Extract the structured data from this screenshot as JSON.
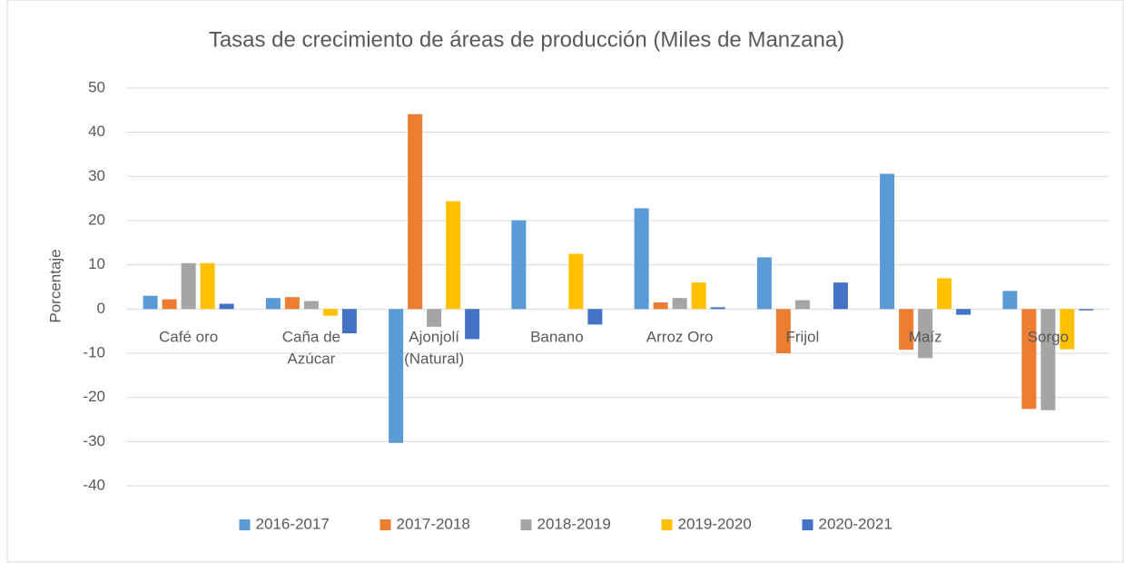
{
  "chart_data": {
    "type": "bar",
    "title": "Tasas de crecimiento de áreas de producción (Miles de Manzana)",
    "y_label": "Porcentaje",
    "categories": [
      "Café oro",
      "Caña de Azúcar",
      "Ajonjolí (Natural)",
      "Banano",
      "Arroz Oro",
      "Frijol",
      "Maíz",
      "Sorgo"
    ],
    "series": [
      {
        "name": "2016-2017",
        "color": "#5b9bd5",
        "values": [
          3.0,
          2.5,
          -30.3,
          20.1,
          22.8,
          11.7,
          30.6,
          4.1
        ]
      },
      {
        "name": "2017-2018",
        "color": "#ed7d31",
        "values": [
          2.2,
          2.7,
          44.1,
          0,
          1.5,
          -10.0,
          -9.2,
          -22.6
        ]
      },
      {
        "name": "2018-2019",
        "color": "#a5a5a5",
        "values": [
          10.4,
          1.8,
          -4.0,
          0,
          2.5,
          2.0,
          -11.1,
          -22.9
        ]
      },
      {
        "name": "2019-2020",
        "color": "#ffc000",
        "values": [
          10.4,
          -1.5,
          24.4,
          12.5,
          6.0,
          0,
          7.0,
          -9.1
        ]
      },
      {
        "name": "2020-2021",
        "color": "#4472c4",
        "values": [
          1.2,
          -5.5,
          -6.8,
          -3.5,
          0.4,
          6.0,
          -1.3,
          -0.3
        ]
      }
    ],
    "ylim": [
      -40,
      50
    ],
    "yticks": [
      -40,
      -30,
      -20,
      -10,
      0,
      10,
      20,
      30,
      40,
      50
    ],
    "grid": true,
    "legend": "bottom"
  }
}
